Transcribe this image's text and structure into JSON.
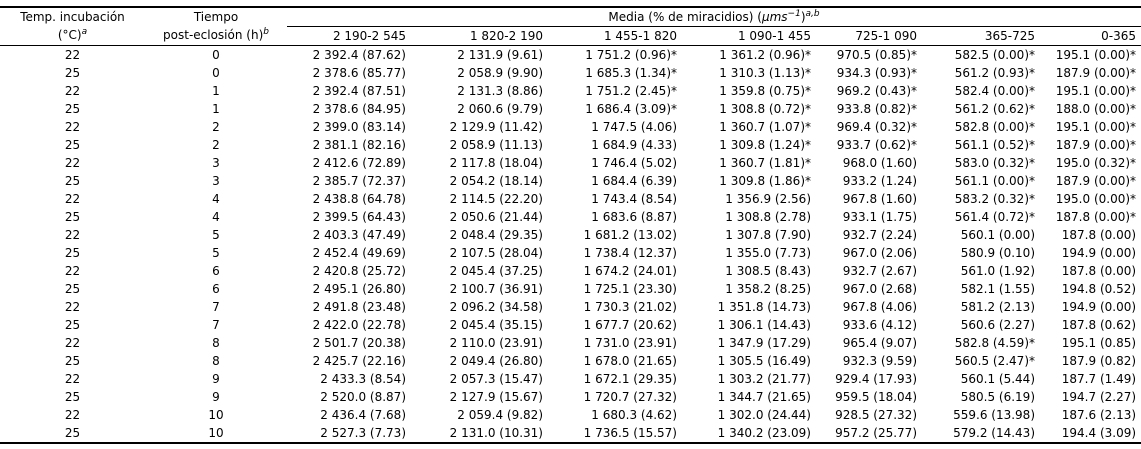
{
  "table": {
    "temp_header_line1": "Temp. incubación",
    "temp_header_line2": "(°C)",
    "temp_header_sup": "a",
    "time_header_line1": "Tiempo",
    "time_header_line2": "post-eclosión (h)",
    "time_header_sup": "b",
    "media_header": {
      "text": "Media (% de miracidios) (",
      "unit": "μms",
      "unit_exp": "−1",
      "close": ")",
      "sup": "a,b"
    },
    "ranges": [
      "2 190-2 545",
      "1 820-2 190",
      "1 455-1 820",
      "1 090-1 455",
      "725-1 090",
      "365-725",
      "0-365"
    ],
    "rows": [
      {
        "temp": "22",
        "time": "0",
        "values": [
          "2 392.4 (87.62)",
          "2 131.9 (9.61)",
          "1 751.2 (0.96)*",
          "1 361.2 (0.96)*",
          "970.5 (0.85)*",
          "582.5 (0.00)*",
          "195.1 (0.00)*"
        ]
      },
      {
        "temp": "25",
        "time": "0",
        "values": [
          "2 378.6 (85.77)",
          "2 058.9 (9.90)",
          "1 685.3 (1.34)*",
          "1 310.3 (1.13)*",
          "934.3 (0.93)*",
          "561.2 (0.93)*",
          "187.9 (0.00)*"
        ]
      },
      {
        "temp": "22",
        "time": "1",
        "values": [
          "2 392.4 (87.51)",
          "2 131.3 (8.86)",
          "1 751.2 (2.45)*",
          "1 359.8 (0.75)*",
          "969.2 (0.43)*",
          "582.4 (0.00)*",
          "195.1 (0.00)*"
        ]
      },
      {
        "temp": "25",
        "time": "1",
        "values": [
          "2 378.6 (84.95)",
          "2 060.6 (9.79)",
          "1 686.4 (3.09)*",
          "1 308.8 (0.72)*",
          "933.8 (0.82)*",
          "561.2 (0.62)*",
          "188.0 (0.00)*"
        ]
      },
      {
        "temp": "22",
        "time": "2",
        "values": [
          "2 399.0 (83.14)",
          "2 129.9 (11.42)",
          "1 747.5 (4.06)",
          "1 360.7 (1.07)*",
          "969.4 (0.32)*",
          "582.8 (0.00)*",
          "195.1 (0.00)*"
        ]
      },
      {
        "temp": "25",
        "time": "2",
        "values": [
          "2 381.1 (82.16)",
          "2 058.9 (11.13)",
          "1 684.9 (4.33)",
          "1 309.8 (1.24)*",
          "933.7 (0.62)*",
          "561.1 (0.52)*",
          "187.9 (0.00)*"
        ]
      },
      {
        "temp": "22",
        "time": "3",
        "values": [
          "2 412.6 (72.89)",
          "2 117.8 (18.04)",
          "1 746.4 (5.02)",
          "1 360.7 (1.81)*",
          "968.0 (1.60)",
          "583.0 (0.32)*",
          "195.0 (0.32)*"
        ]
      },
      {
        "temp": "25",
        "time": "3",
        "values": [
          "2 385.7 (72.37)",
          "2 054.2 (18.14)",
          "1 684.4 (6.39)",
          "1 309.8 (1.86)*",
          "933.2 (1.24)",
          "561.1 (0.00)*",
          "187.9 (0.00)*"
        ]
      },
      {
        "temp": "22",
        "time": "4",
        "values": [
          "2 438.8 (64.78)",
          "2 114.5 (22.20)",
          "1 743.4 (8.54)",
          "1 356.9 (2.56)",
          "967.8 (1.60)",
          "583.2 (0.32)*",
          "195.0 (0.00)*"
        ]
      },
      {
        "temp": "25",
        "time": "4",
        "values": [
          "2 399.5 (64.43)",
          "2 050.6 (21.44)",
          "1 683.6 (8.87)",
          "1 308.8 (2.78)",
          "933.1 (1.75)",
          "561.4 (0.72)*",
          "187.8 (0.00)*"
        ]
      },
      {
        "temp": "22",
        "time": "5",
        "values": [
          "2 403.3 (47.49)",
          "2 048.4 (29.35)",
          "1 681.2 (13.02)",
          "1 307.8 (7.90)",
          "932.7 (2.24)",
          "560.1 (0.00)",
          "187.8 (0.00)"
        ]
      },
      {
        "temp": "25",
        "time": "5",
        "values": [
          "2 452.4 (49.69)",
          "2 107.5 (28.04)",
          "1 738.4 (12.37)",
          "1 355.0 (7.73)",
          "967.0 (2.06)",
          "580.9 (0.10)",
          "194.9 (0.00)"
        ]
      },
      {
        "temp": "22",
        "time": "6",
        "values": [
          "2 420.8 (25.72)",
          "2 045.4 (37.25)",
          "1 674.2 (24.01)",
          "1 308.5 (8.43)",
          "932.7 (2.67)",
          "561.0 (1.92)",
          "187.8 (0.00)"
        ]
      },
      {
        "temp": "25",
        "time": "6",
        "values": [
          "2 495.1 (26.80)",
          "2 100.7 (36.91)",
          "1 725.1 (23.30)",
          "1 358.2 (8.25)",
          "967.0 (2.68)",
          "582.1 (1.55)",
          "194.8 (0.52)"
        ]
      },
      {
        "temp": "22",
        "time": "7",
        "values": [
          "2 491.8 (23.48)",
          "2 096.2 (34.58)",
          "1 730.3 (21.02)",
          "1 351.8 (14.73)",
          "967.8 (4.06)",
          "581.2 (2.13)",
          "194.9 (0.00)"
        ]
      },
      {
        "temp": "25",
        "time": "7",
        "values": [
          "2 422.0 (22.78)",
          "2 045.4 (35.15)",
          "1 677.7 (20.62)",
          "1 306.1 (14.43)",
          "933.6 (4.12)",
          "560.6 (2.27)",
          "187.8 (0.62)"
        ]
      },
      {
        "temp": "22",
        "time": "8",
        "values": [
          "2 501.7 (20.38)",
          "2 110.0 (23.91)",
          "1 731.0 (23.91)",
          "1 347.9 (17.29)",
          "965.4 (9.07)",
          "582.8 (4.59)*",
          "195.1 (0.85)"
        ]
      },
      {
        "temp": "25",
        "time": "8",
        "values": [
          "2 425.7 (22.16)",
          "2 049.4 (26.80)",
          "1 678.0 (21.65)",
          "1 305.5 (16.49)",
          "932.3 (9.59)",
          "560.5 (2.47)*",
          "187.9 (0.82)"
        ]
      },
      {
        "temp": "22",
        "time": "9",
        "values": [
          "2 433.3 (8.54)",
          "2 057.3 (15.47)",
          "1 672.1 (29.35)",
          "1 303.2 (21.77)",
          "929.4 (17.93)",
          "560.1 (5.44)",
          "187.7 (1.49)"
        ]
      },
      {
        "temp": "25",
        "time": "9",
        "values": [
          "2 520.0 (8.87)",
          "2 127.9 (15.67)",
          "1 720.7 (27.32)",
          "1 344.7 (21.65)",
          "959.5 (18.04)",
          "580.5 (6.19)",
          "194.7 (2.27)"
        ]
      },
      {
        "temp": "22",
        "time": "10",
        "values": [
          "2 436.4 (7.68)",
          "2 059.4 (9.82)",
          "1 680.3 (4.62)",
          "1 302.0 (24.44)",
          "928.5 (27.32)",
          "559.6 (13.98)",
          "187.6 (2.13)"
        ]
      },
      {
        "temp": "25",
        "time": "10",
        "values": [
          "2 527.3 (7.73)",
          "2 131.0 (10.31)",
          "1 736.5 (15.57)",
          "1 340.2 (23.09)",
          "957.2 (25.77)",
          "579.2 (14.43)",
          "194.4 (3.09)"
        ]
      }
    ]
  }
}
